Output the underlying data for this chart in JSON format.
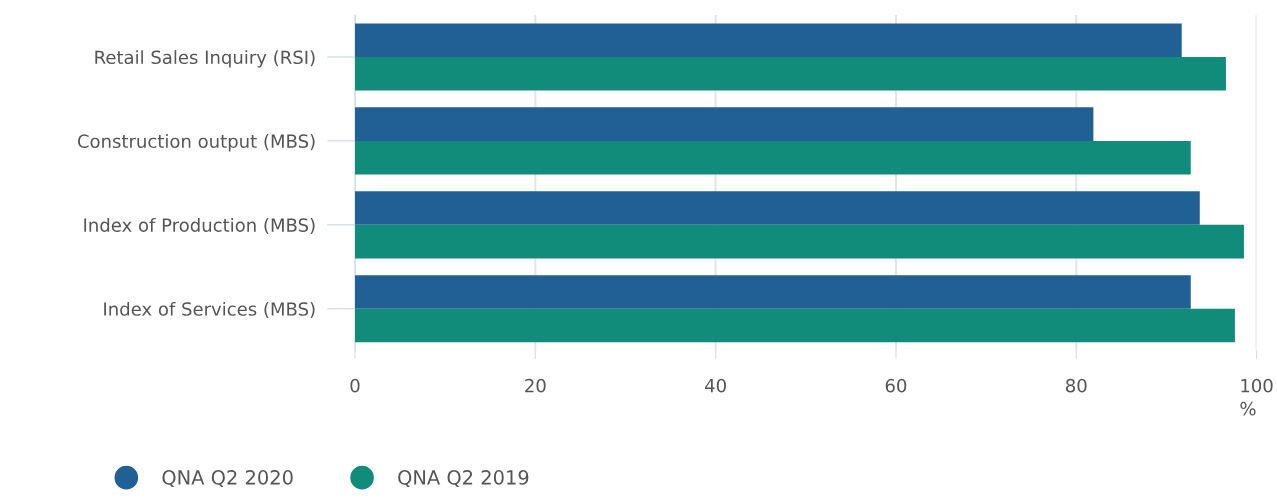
{
  "chart_data": {
    "type": "bar",
    "orientation": "horizontal",
    "xlabel": "%",
    "categories": [
      "Retail Sales Inquiry (RSI)",
      "Construction output (MBS)",
      "Index of Production (MBS)",
      "Index of Services (MBS)"
    ],
    "series": [
      {
        "name": "QNA Q2 2020",
        "color": "#206095",
        "values": [
          91.7,
          81.9,
          93.7,
          92.7
        ]
      },
      {
        "name": "QNA Q2 2019",
        "color": "#118c7b",
        "values": [
          96.6,
          92.7,
          98.6,
          97.6
        ]
      }
    ],
    "xlim": [
      0,
      100
    ],
    "xticks": [
      0,
      20,
      40,
      60,
      80,
      100
    ],
    "grid": "x",
    "legend": "bottom left"
  }
}
